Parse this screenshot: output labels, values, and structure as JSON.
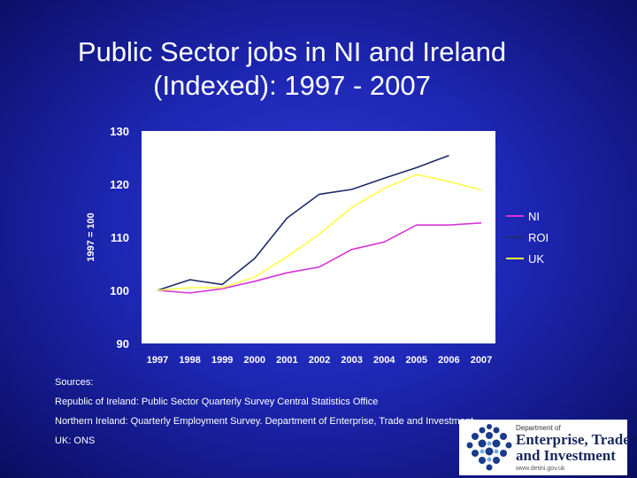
{
  "slide": {
    "title_line1": "Public Sector jobs in NI and Ireland",
    "title_line2": "(Indexed): 1997 - 2007",
    "sources": [
      "Sources:",
      "Republic of Ireland: Public Sector Quarterly Survey  Central Statistics Office",
      "Northern Ireland: Quarterly Employment Survey. Department of Enterprise, Trade and Investment",
      "UK: ONS"
    ]
  },
  "logo": {
    "dept": "Department of",
    "line1": "Enterprise, Trade",
    "line2": "and Investment",
    "url": "www.detini.gov.uk"
  },
  "colors": {
    "background": "#1e27b4",
    "plot_background": "#ffffff",
    "NI": "#d633d6",
    "ROI": "#1f2a6b",
    "UK": "#ffff44"
  },
  "chart_data": {
    "type": "line",
    "title": "",
    "xlabel": "",
    "ylabel": "1997 = 100",
    "categories": [
      "1997",
      "1998",
      "1999",
      "2000",
      "2001",
      "2002",
      "2003",
      "2004",
      "2005",
      "2006",
      "2007"
    ],
    "ylim": [
      90,
      130
    ],
    "yticks": [
      90,
      100,
      110,
      120,
      130
    ],
    "grid": false,
    "legend": "right",
    "series": [
      {
        "name": "NI",
        "color": "#d633d6",
        "values": [
          100,
          99.5,
          100.3,
          101.7,
          103.3,
          104.4,
          107.7,
          109.1,
          112.3,
          112.3,
          112.7
        ]
      },
      {
        "name": "ROI",
        "color": "#1f2a6b",
        "values": [
          100,
          102.0,
          101.1,
          106.0,
          113.6,
          118.1,
          119.0,
          121.1,
          123.1,
          125.4,
          null
        ]
      },
      {
        "name": "UK",
        "color": "#ffff44",
        "values": [
          100,
          100.5,
          100.5,
          102.5,
          106.3,
          110.6,
          115.6,
          119.2,
          121.8,
          120.5,
          118.9
        ]
      }
    ]
  }
}
